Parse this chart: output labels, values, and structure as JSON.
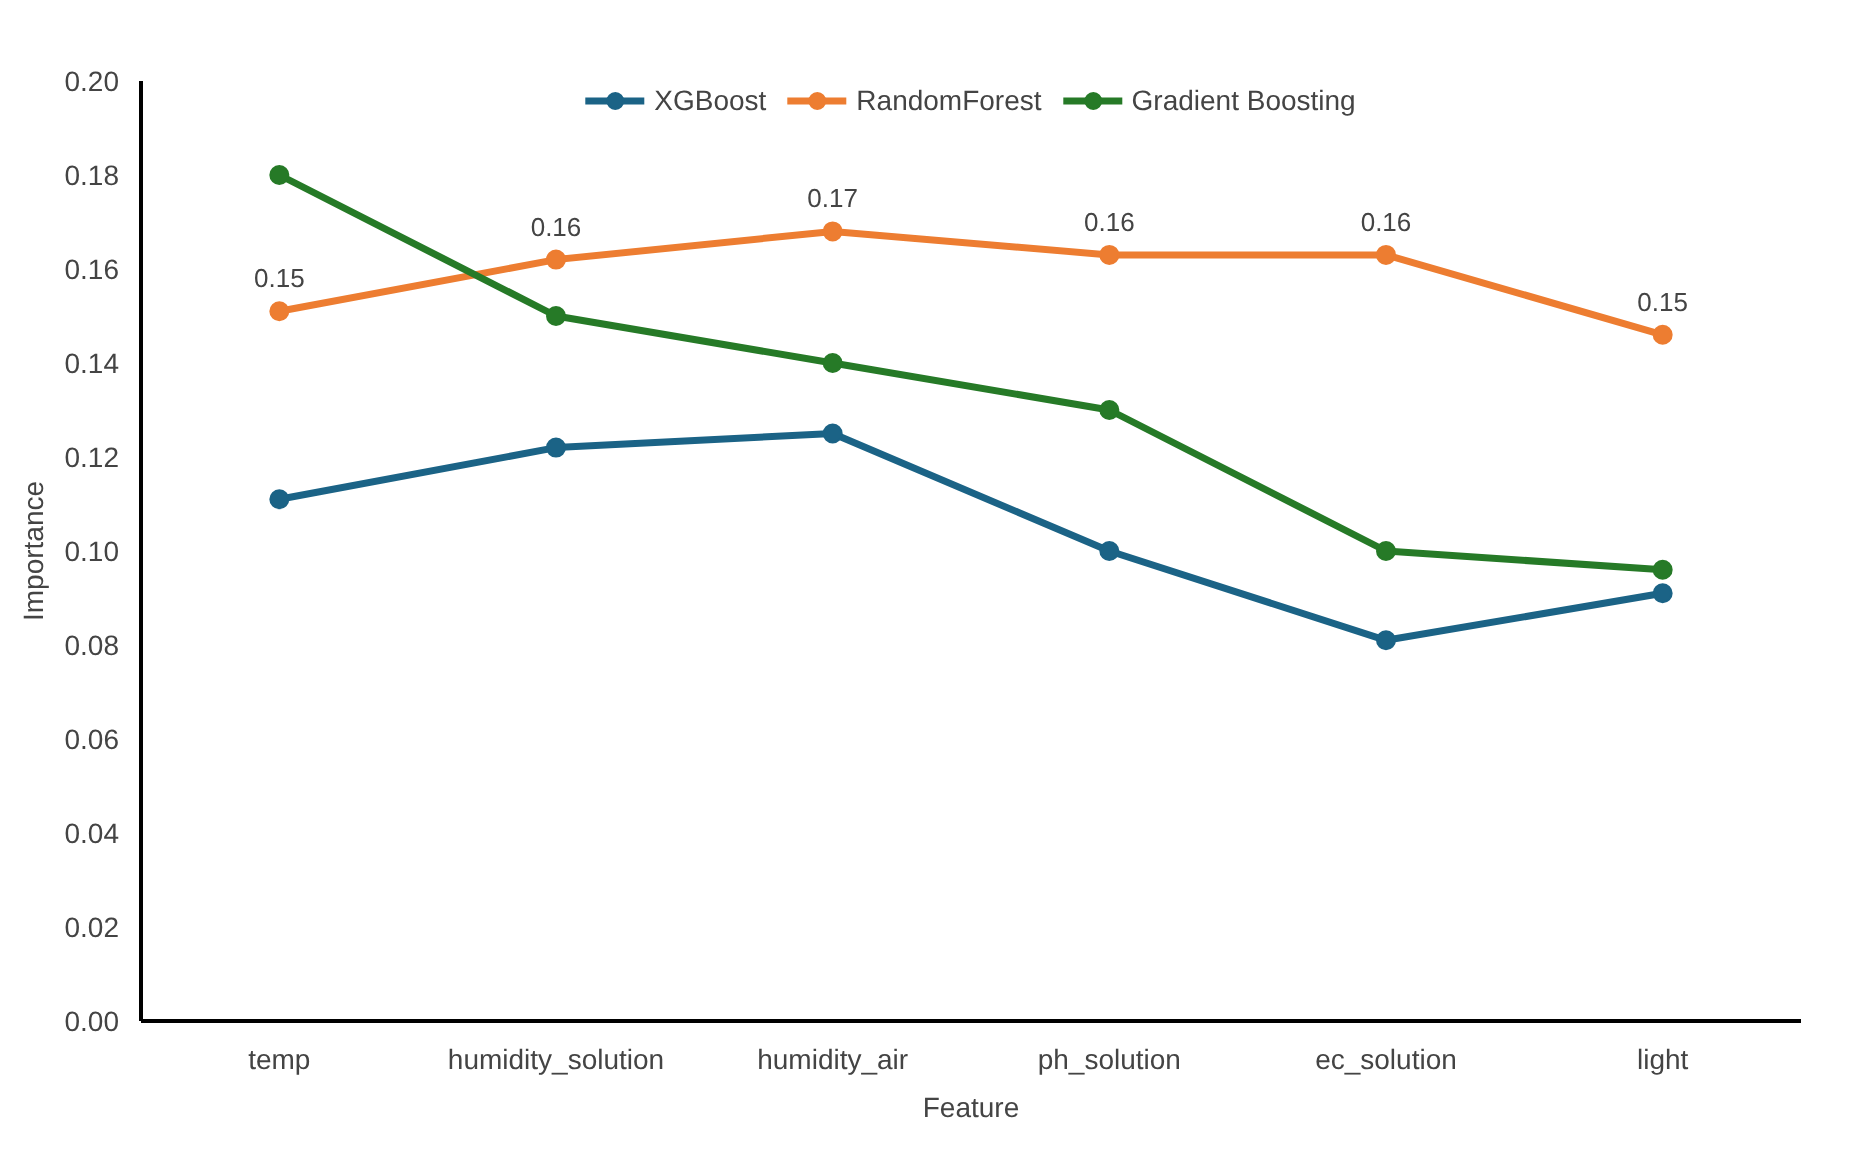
{
  "chart_data": {
    "type": "line",
    "xlabel": "Feature",
    "ylabel": "Importance",
    "categories": [
      "temp",
      "humidity_solution",
      "humidity_air",
      "ph_solution",
      "ec_solution",
      "light"
    ],
    "series": [
      {
        "name": "XGBoost",
        "color": "#1b6386",
        "values": [
          0.111,
          0.122,
          0.125,
          0.1,
          0.081,
          0.091
        ]
      },
      {
        "name": "RandomForest",
        "color": "#ed7d31",
        "values": [
          0.151,
          0.162,
          0.168,
          0.163,
          0.163,
          0.146
        ],
        "value_labels": [
          "0.15",
          "0.16",
          "0.17",
          "0.16",
          "0.16",
          "0.15"
        ]
      },
      {
        "name": "Gradient Boosting",
        "color": "#267a27",
        "values": [
          0.18,
          0.15,
          0.14,
          0.13,
          0.1,
          0.096
        ]
      }
    ],
    "ylim": [
      0,
      0.2
    ],
    "yticks": [
      {
        "value": 0,
        "label": "0.00"
      },
      {
        "value": 0.02,
        "label": "0.02"
      },
      {
        "value": 0.04,
        "label": "0.04"
      },
      {
        "value": 0.06,
        "label": "0.06"
      },
      {
        "value": 0.08,
        "label": "0.08"
      },
      {
        "value": 0.1,
        "label": "0.10"
      },
      {
        "value": 0.12,
        "label": "0.12"
      },
      {
        "value": 0.14,
        "label": "0.14"
      },
      {
        "value": 0.16,
        "label": "0.16"
      },
      {
        "value": 0.18,
        "label": "0.18"
      },
      {
        "value": 0.2,
        "label": "0.20"
      }
    ],
    "grid": false,
    "legend": "top",
    "marker": "circle",
    "line_style": "solid"
  }
}
